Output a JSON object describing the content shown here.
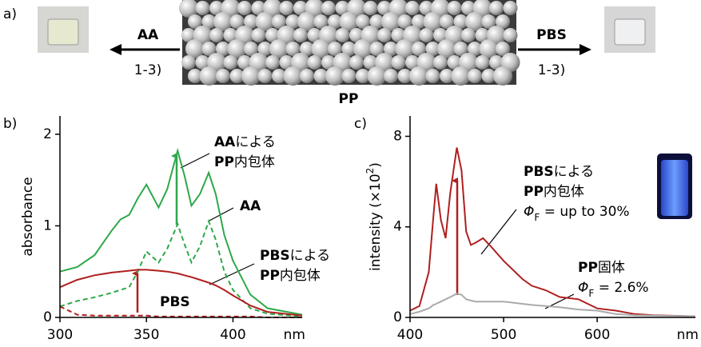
{
  "panel_a": {
    "label": "a)",
    "left_reagent": "AA",
    "left_cond": "1-3)",
    "right_reagent": "PBS",
    "right_cond": "1-3)",
    "molecule": "PP"
  },
  "chart_data": [
    {
      "type": "line",
      "panel_label": "b)",
      "ylabel": "absorbance",
      "xlabel": "nm",
      "x": [
        300,
        310,
        320,
        330,
        335,
        340,
        345,
        350,
        357,
        362,
        368,
        372,
        376,
        381,
        386,
        390,
        395,
        400,
        410,
        420,
        440
      ],
      "xlim": [
        300,
        440
      ],
      "xticks": [
        300,
        350,
        400
      ],
      "ylim": [
        0,
        2.2
      ],
      "yticks": [
        0,
        1,
        2
      ],
      "series": [
        {
          "color": "#2ea84a",
          "dash": false,
          "values": [
            0.5,
            0.55,
            0.68,
            0.95,
            1.07,
            1.12,
            1.3,
            1.45,
            1.2,
            1.4,
            1.82,
            1.55,
            1.22,
            1.35,
            1.58,
            1.35,
            0.9,
            0.62,
            0.25,
            0.1,
            0.03
          ]
        },
        {
          "color": "#2ea84a",
          "dash": true,
          "values": [
            0.12,
            0.18,
            0.22,
            0.27,
            0.3,
            0.33,
            0.5,
            0.72,
            0.6,
            0.75,
            1.02,
            0.8,
            0.6,
            0.78,
            1.05,
            0.85,
            0.5,
            0.3,
            0.1,
            0.04,
            0.01
          ]
        },
        {
          "color": "#b01f1f",
          "dash": false,
          "values": [
            0.33,
            0.41,
            0.46,
            0.49,
            0.5,
            0.51,
            0.52,
            0.52,
            0.51,
            0.5,
            0.48,
            0.46,
            0.44,
            0.41,
            0.38,
            0.35,
            0.3,
            0.24,
            0.13,
            0.06,
            0.02
          ]
        },
        {
          "color": "#b01f1f",
          "dash": true,
          "values": [
            0.12,
            0.03,
            0.02,
            0.02,
            0.02,
            0.02,
            0.02,
            0.02,
            0.01,
            0.01,
            0.01,
            0.01,
            0.01,
            0.01,
            0.01,
            0.01,
            0.01,
            0.01,
            0.01,
            0,
            0
          ]
        }
      ],
      "annotations": [
        {
          "lines": [
            {
              "bold": "AA",
              "text": "による"
            },
            {
              "bold": "PP",
              "text": "内包体"
            }
          ]
        },
        {
          "lines": [
            {
              "bold": "AA"
            }
          ]
        },
        {
          "lines": [
            {
              "bold": "PBS",
              "text": "による"
            },
            {
              "bold": "PP",
              "text": "内包体"
            }
          ]
        },
        {
          "lines": [
            {
              "bold": "PBS"
            }
          ]
        }
      ]
    },
    {
      "type": "line",
      "panel_label": "c)",
      "ylabel": {
        "text": "intensity (×10",
        "sup": "2",
        "end": ")"
      },
      "xlabel": "nm",
      "x": [
        400,
        410,
        420,
        425,
        428,
        433,
        438,
        443,
        450,
        455,
        460,
        465,
        470,
        478,
        485,
        500,
        520,
        530,
        545,
        560,
        580,
        600,
        620,
        640,
        660,
        705
      ],
      "xlim": [
        400,
        705
      ],
      "xticks": [
        400,
        500,
        600
      ],
      "ylim": [
        0,
        8.9
      ],
      "yticks": [
        0,
        4,
        8
      ],
      "series": [
        {
          "color": "#b01f1f",
          "dash": false,
          "values": [
            0.3,
            0.5,
            2.0,
            4.5,
            5.9,
            4.3,
            3.5,
            5.5,
            7.5,
            6.5,
            3.8,
            3.2,
            3.3,
            3.5,
            3.2,
            2.5,
            1.7,
            1.4,
            1.2,
            0.9,
            0.8,
            0.4,
            0.3,
            0.15,
            0.1,
            0.05
          ]
        },
        {
          "color": "#aaaaaa",
          "dash": false,
          "values": [
            0.15,
            0.25,
            0.4,
            0.55,
            0.6,
            0.7,
            0.8,
            0.9,
            1.05,
            1.0,
            0.8,
            0.75,
            0.7,
            0.7,
            0.7,
            0.7,
            0.6,
            0.55,
            0.5,
            0.45,
            0.35,
            0.3,
            0.15,
            0.1,
            0.08,
            0.05
          ]
        }
      ],
      "annotations": [
        {
          "lines": [
            {
              "bold": "PBS",
              "text": "による"
            },
            {
              "bold": "PP",
              "text": "内包体"
            },
            {
              "italic": "Φ",
              "sub": "F",
              "text": " = up to 30%"
            }
          ]
        },
        {
          "lines": [
            {
              "bold": "PP",
              "text": "固体"
            },
            {
              "italic": "Φ",
              "sub": "F",
              "text": " = 2.6%"
            }
          ]
        }
      ]
    }
  ]
}
